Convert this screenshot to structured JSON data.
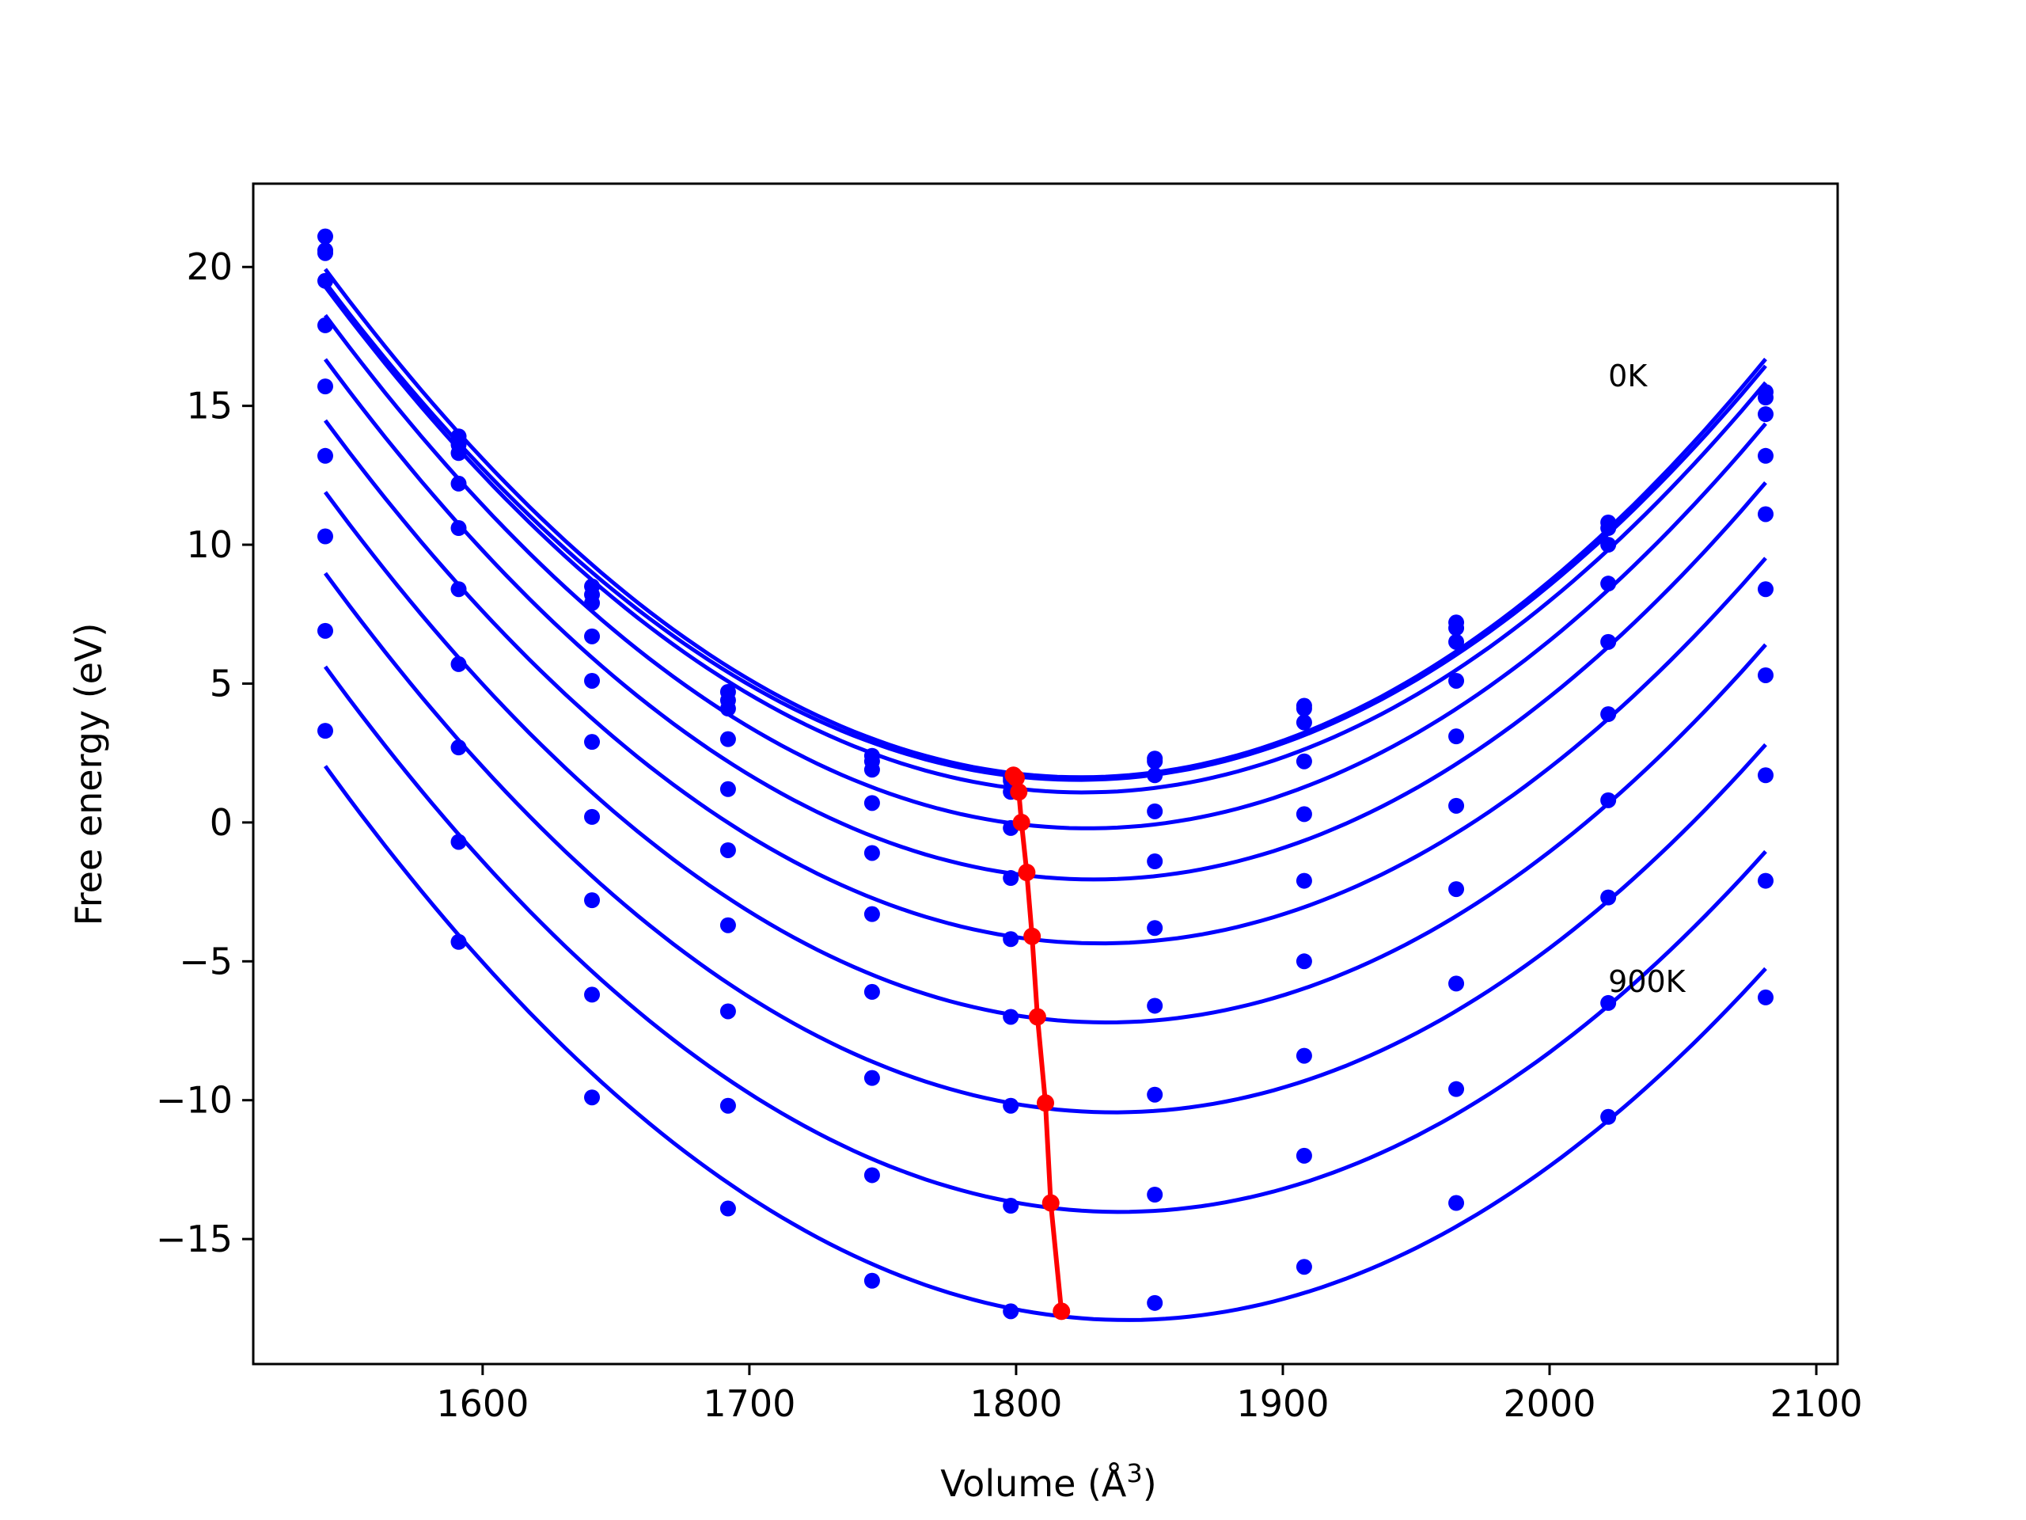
{
  "chart_data": {
    "type": "line",
    "title": "",
    "xlabel": "Volume (Å",
    "xlabel_sup": "3",
    "xlabel_close": ")",
    "ylabel": "Free energy (eV)",
    "xlim": [
      1514,
      2108
    ],
    "ylim": [
      -19.5,
      23.0
    ],
    "xticks": [
      1600,
      1700,
      1800,
      1900,
      2000,
      2100
    ],
    "yticks": [
      -15,
      -10,
      -5,
      0,
      5,
      10,
      15,
      20
    ],
    "xtick_labels": [
      "1600",
      "1700",
      "1800",
      "1900",
      "2000",
      "2100"
    ],
    "ytick_labels": [
      "−15",
      "−10",
      "−5",
      "0",
      "5",
      "10",
      "15",
      "20"
    ],
    "colors": {
      "curves": "#0000ff",
      "minima": "#ff0000"
    },
    "annotations": [
      {
        "text": "0K",
        "x": 2022,
        "y": 15.7
      },
      {
        "text": "900K",
        "x": 2022,
        "y": -6.1
      }
    ],
    "volumes": [
      1541,
      1591,
      1641,
      1692,
      1746,
      1798,
      1852,
      1908,
      1965,
      2022,
      2081
    ],
    "series": [
      {
        "values": [
          21.1,
          13.9,
          8.5,
          4.7,
          2.4,
          1.5,
          2.3,
          4.2,
          7.2,
          10.8,
          15.5
        ],
        "min_x": 1799,
        "min_y": 1.7
      },
      {
        "values": [
          20.6,
          13.6,
          8.2,
          4.4,
          2.2,
          1.6,
          2.2,
          4.1,
          7.0,
          10.6,
          15.3
        ],
        "min_x": 1800,
        "min_y": 1.6
      },
      {
        "values": [
          20.5,
          13.3,
          7.9,
          4.1,
          1.9,
          1.1,
          1.7,
          3.6,
          6.5,
          10.0,
          14.7
        ],
        "min_x": 1801,
        "min_y": 1.1
      },
      {
        "values": [
          19.5,
          12.2,
          6.7,
          3.0,
          0.7,
          -0.2,
          0.4,
          2.2,
          5.1,
          8.6,
          13.2
        ],
        "min_x": 1802,
        "min_y": 0.0
      },
      {
        "values": [
          17.9,
          10.6,
          5.1,
          1.2,
          -1.1,
          -2.0,
          -1.4,
          0.3,
          3.1,
          6.5,
          11.1
        ],
        "min_x": 1804,
        "min_y": -1.8
      },
      {
        "values": [
          15.7,
          8.4,
          2.9,
          -1.0,
          -3.3,
          -4.2,
          -3.8,
          -2.1,
          0.6,
          3.9,
          8.4
        ],
        "min_x": 1806,
        "min_y": -4.1
      },
      {
        "values": [
          13.2,
          5.7,
          0.2,
          -3.7,
          -6.1,
          -7.0,
          -6.6,
          -5.0,
          -2.4,
          0.8,
          5.3
        ],
        "min_x": 1808,
        "min_y": -7.0
      },
      {
        "values": [
          10.3,
          2.7,
          -2.8,
          -6.8,
          -9.2,
          -10.2,
          -9.8,
          -8.4,
          -5.8,
          -2.7,
          1.7
        ],
        "min_x": 1811,
        "min_y": -10.1
      },
      {
        "values": [
          6.9,
          -0.7,
          -6.2,
          -10.2,
          -12.7,
          -13.8,
          -13.4,
          -12.0,
          -9.6,
          -6.5,
          -2.1
        ],
        "min_x": 1813,
        "min_y": -13.7
      },
      {
        "values": [
          3.3,
          -4.3,
          -9.9,
          -13.9,
          -16.5,
          -17.6,
          -17.3,
          -16.0,
          -13.7,
          -10.6,
          -6.3
        ],
        "min_x": 1817,
        "min_y": -17.6
      }
    ]
  }
}
